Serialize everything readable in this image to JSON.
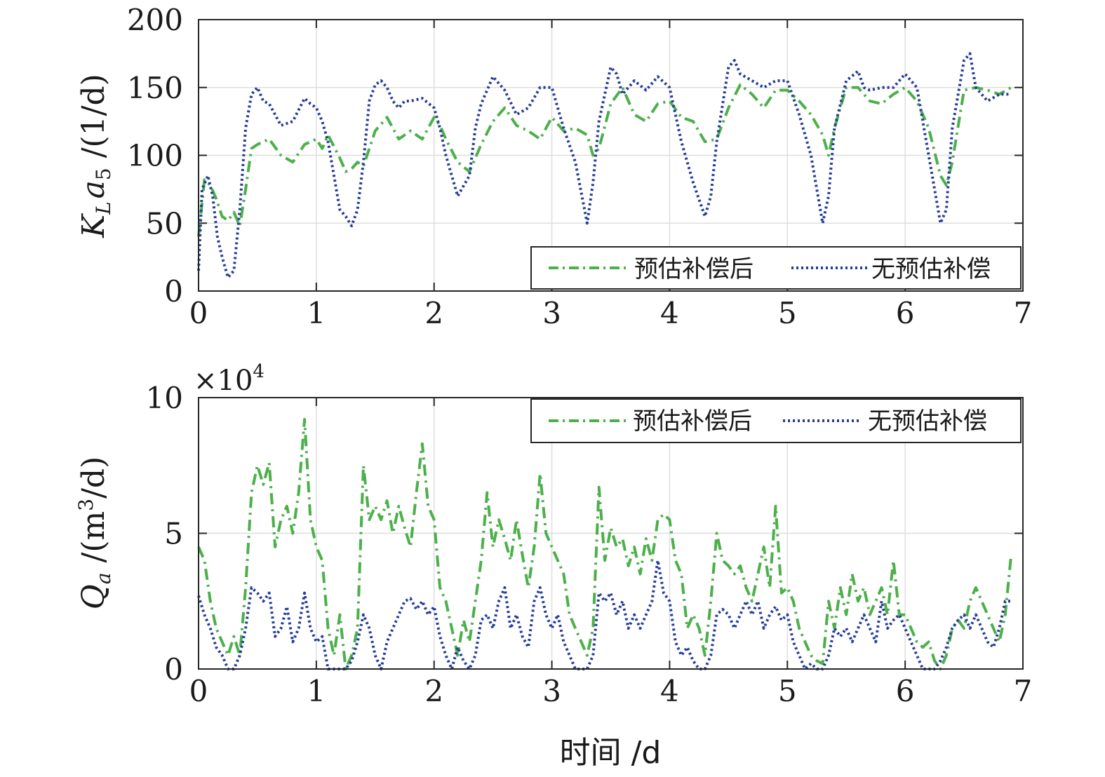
{
  "colors": {
    "green": "#4CB04A",
    "blue": "#253B9A",
    "grid": "#DEDEDE",
    "axis": "#262626"
  },
  "x_label": "时间 /d",
  "chart_data": [
    {
      "type": "line",
      "ylabel": {
        "main": "K",
        "sub1": "L",
        "mid": "a",
        "sub2": "5",
        "unit": " /(1/d)"
      },
      "xlim": [
        0,
        7
      ],
      "ylim": [
        0,
        200
      ],
      "xticks": [
        "0",
        "1",
        "2",
        "3",
        "4",
        "5",
        "6",
        "7"
      ],
      "yticks": [
        "0",
        "50",
        "100",
        "150",
        "200"
      ],
      "grid": true,
      "legend_position": "bottom-right",
      "series": [
        {
          "name": "预估补偿后",
          "color": "#4CB04A",
          "style": "dashdot",
          "x": [
            0,
            0.05,
            0.1,
            0.15,
            0.2,
            0.25,
            0.3,
            0.35,
            0.4,
            0.45,
            0.5,
            0.6,
            0.7,
            0.8,
            0.9,
            1.0,
            1.05,
            1.1,
            1.2,
            1.25,
            1.3,
            1.35,
            1.4,
            1.5,
            1.6,
            1.7,
            1.8,
            1.9,
            2.0,
            2.05,
            2.1,
            2.2,
            2.3,
            2.4,
            2.5,
            2.6,
            2.7,
            2.8,
            2.9,
            3.0,
            3.1,
            3.2,
            3.3,
            3.35,
            3.4,
            3.5,
            3.6,
            3.7,
            3.8,
            3.9,
            4.0,
            4.1,
            4.2,
            4.3,
            4.4,
            4.5,
            4.6,
            4.7,
            4.8,
            4.9,
            5.0,
            5.1,
            5.2,
            5.3,
            5.35,
            5.4,
            5.5,
            5.6,
            5.7,
            5.8,
            5.9,
            6.0,
            6.1,
            6.2,
            6.3,
            6.35,
            6.4,
            6.5,
            6.6,
            6.7,
            6.8,
            6.9
          ],
          "y": [
            40,
            82,
            78,
            68,
            55,
            52,
            58,
            48,
            75,
            105,
            108,
            112,
            100,
            95,
            108,
            112,
            105,
            115,
            98,
            88,
            90,
            95,
            92,
            118,
            128,
            112,
            118,
            112,
            128,
            122,
            112,
            95,
            88,
            108,
            125,
            135,
            122,
            118,
            112,
            128,
            118,
            120,
            115,
            100,
            105,
            138,
            150,
            130,
            125,
            138,
            140,
            128,
            125,
            110,
            112,
            135,
            152,
            145,
            135,
            148,
            148,
            140,
            130,
            115,
            100,
            120,
            150,
            150,
            140,
            138,
            145,
            150,
            140,
            120,
            85,
            78,
            95,
            148,
            150,
            148,
            145,
            150
          ]
        },
        {
          "name": "无预估补偿",
          "color": "#253B9A",
          "style": "dotted",
          "x": [
            0,
            0.03,
            0.08,
            0.12,
            0.16,
            0.2,
            0.25,
            0.3,
            0.35,
            0.4,
            0.45,
            0.5,
            0.55,
            0.6,
            0.7,
            0.8,
            0.9,
            0.95,
            1.0,
            1.05,
            1.1,
            1.2,
            1.25,
            1.3,
            1.35,
            1.4,
            1.45,
            1.5,
            1.55,
            1.6,
            1.65,
            1.7,
            1.75,
            1.8,
            1.9,
            2.0,
            2.05,
            2.1,
            2.2,
            2.3,
            2.35,
            2.4,
            2.5,
            2.6,
            2.7,
            2.8,
            2.9,
            3.0,
            3.1,
            3.2,
            3.3,
            3.35,
            3.4,
            3.5,
            3.55,
            3.6,
            3.7,
            3.8,
            3.9,
            4.0,
            4.1,
            4.2,
            4.3,
            4.35,
            4.4,
            4.5,
            4.55,
            4.6,
            4.7,
            4.8,
            4.9,
            5.0,
            5.1,
            5.2,
            5.3,
            5.35,
            5.4,
            5.5,
            5.6,
            5.65,
            5.7,
            5.8,
            5.9,
            6.0,
            6.1,
            6.2,
            6.3,
            6.35,
            6.4,
            6.5,
            6.55,
            6.6,
            6.7,
            6.8,
            6.9
          ],
          "y": [
            15,
            75,
            85,
            70,
            40,
            25,
            10,
            15,
            60,
            120,
            145,
            150,
            140,
            138,
            122,
            125,
            142,
            138,
            135,
            125,
            110,
            60,
            55,
            48,
            60,
            95,
            140,
            152,
            155,
            150,
            140,
            135,
            140,
            140,
            142,
            135,
            120,
            100,
            70,
            85,
            120,
            138,
            158,
            148,
            130,
            135,
            150,
            150,
            120,
            95,
            50,
            80,
            125,
            165,
            160,
            145,
            155,
            148,
            158,
            150,
            110,
            80,
            55,
            70,
            110,
            165,
            170,
            160,
            155,
            150,
            155,
            155,
            130,
            100,
            50,
            70,
            120,
            155,
            162,
            150,
            148,
            150,
            150,
            160,
            150,
            100,
            50,
            60,
            120,
            170,
            175,
            150,
            140,
            145,
            145
          ]
        }
      ]
    },
    {
      "type": "line",
      "ylabel": {
        "main": "Q",
        "sub1": "a",
        "unit1": " /(m",
        "sup": "3",
        "unit2": "/d)"
      },
      "multiplier": {
        "base": "×10",
        "exp": "4"
      },
      "xlim": [
        0,
        7
      ],
      "ylim": [
        0,
        10
      ],
      "xticks": [
        "0",
        "1",
        "2",
        "3",
        "4",
        "5",
        "6",
        "7"
      ],
      "yticks": [
        "0",
        "5",
        "10"
      ],
      "grid": true,
      "legend_position": "top-right",
      "series": [
        {
          "name": "预估补偿后",
          "color": "#4CB04A",
          "style": "dashdot",
          "x": [
            0,
            0.05,
            0.1,
            0.15,
            0.2,
            0.25,
            0.3,
            0.35,
            0.4,
            0.45,
            0.5,
            0.55,
            0.6,
            0.65,
            0.7,
            0.75,
            0.8,
            0.85,
            0.9,
            0.95,
            1.0,
            1.05,
            1.1,
            1.15,
            1.2,
            1.25,
            1.3,
            1.35,
            1.4,
            1.45,
            1.5,
            1.55,
            1.6,
            1.65,
            1.7,
            1.75,
            1.8,
            1.85,
            1.9,
            1.95,
            2.0,
            2.05,
            2.1,
            2.15,
            2.2,
            2.25,
            2.3,
            2.35,
            2.4,
            2.45,
            2.5,
            2.55,
            2.6,
            2.65,
            2.7,
            2.75,
            2.8,
            2.85,
            2.9,
            2.95,
            3.0,
            3.05,
            3.1,
            3.15,
            3.2,
            3.25,
            3.3,
            3.35,
            3.4,
            3.45,
            3.5,
            3.55,
            3.6,
            3.65,
            3.7,
            3.75,
            3.8,
            3.85,
            3.9,
            3.95,
            4.0,
            4.05,
            4.1,
            4.15,
            4.2,
            4.25,
            4.3,
            4.35,
            4.4,
            4.45,
            4.5,
            4.55,
            4.6,
            4.65,
            4.7,
            4.75,
            4.8,
            4.85,
            4.9,
            4.95,
            5.0,
            5.05,
            5.1,
            5.15,
            5.2,
            5.25,
            5.3,
            5.35,
            5.4,
            5.45,
            5.5,
            5.55,
            5.6,
            5.65,
            5.7,
            5.75,
            5.8,
            5.85,
            5.9,
            5.95,
            6.0,
            6.05,
            6.1,
            6.15,
            6.2,
            6.25,
            6.3,
            6.35,
            6.4,
            6.45,
            6.5,
            6.55,
            6.6,
            6.65,
            6.7,
            6.75,
            6.8,
            6.85,
            6.9
          ],
          "y": [
            4.5,
            4.0,
            2.5,
            1.5,
            1.0,
            0.5,
            1.2,
            0.5,
            3.0,
            6.5,
            7.5,
            6.8,
            7.6,
            4.5,
            5.5,
            6.0,
            5.0,
            6.5,
            9.2,
            5.5,
            4.5,
            4.0,
            1.5,
            0.5,
            2.0,
            0.0,
            0.5,
            1.5,
            7.5,
            5.5,
            6.0,
            5.5,
            6.2,
            5.0,
            6.0,
            5.2,
            4.5,
            6.5,
            8.3,
            6.0,
            5.5,
            3.0,
            2.5,
            1.5,
            0.5,
            1.8,
            1.0,
            2.5,
            4.0,
            6.5,
            4.5,
            5.5,
            4.8,
            4.0,
            5.5,
            4.2,
            3.0,
            4.5,
            7.2,
            5.0,
            4.5,
            4.0,
            3.5,
            2.0,
            1.5,
            1.0,
            0.5,
            1.5,
            6.7,
            4.0,
            5.2,
            4.5,
            4.8,
            3.8,
            4.5,
            3.5,
            4.8,
            4.0,
            5.5,
            5.7,
            5.5,
            4.0,
            3.5,
            1.5,
            2.0,
            1.5,
            0.5,
            2.5,
            5.0,
            4.0,
            3.8,
            3.5,
            3.8,
            3.0,
            2.5,
            3.5,
            4.5,
            3.0,
            6.0,
            2.8,
            3.0,
            2.5,
            1.5,
            1.0,
            0.5,
            0.3,
            0.2,
            2.5,
            1.5,
            3.0,
            2.0,
            3.5,
            2.5,
            3.0,
            2.0,
            2.5,
            3.0,
            2.0,
            4.0,
            2.0,
            2.0,
            1.5,
            1.0,
            0.8,
            1.0,
            0.3,
            0.0,
            0.5,
            1.5,
            1.8,
            1.5,
            2.5,
            3.0,
            2.5,
            2.0,
            1.5,
            1.0,
            2.0,
            4.2
          ]
        },
        {
          "name": "无预估补偿",
          "color": "#253B9A",
          "style": "dotted",
          "x": [
            0,
            0.05,
            0.1,
            0.15,
            0.2,
            0.25,
            0.3,
            0.35,
            0.4,
            0.45,
            0.5,
            0.55,
            0.6,
            0.65,
            0.7,
            0.75,
            0.8,
            0.85,
            0.9,
            0.95,
            1.0,
            1.05,
            1.1,
            1.15,
            1.2,
            1.25,
            1.3,
            1.35,
            1.4,
            1.45,
            1.5,
            1.55,
            1.6,
            1.65,
            1.7,
            1.75,
            1.8,
            1.85,
            1.9,
            1.95,
            2.0,
            2.05,
            2.1,
            2.15,
            2.2,
            2.25,
            2.3,
            2.35,
            2.4,
            2.45,
            2.5,
            2.55,
            2.6,
            2.65,
            2.7,
            2.75,
            2.8,
            2.85,
            2.9,
            2.95,
            3.0,
            3.05,
            3.1,
            3.15,
            3.2,
            3.25,
            3.3,
            3.35,
            3.4,
            3.45,
            3.5,
            3.55,
            3.6,
            3.65,
            3.7,
            3.75,
            3.8,
            3.85,
            3.9,
            3.95,
            4.0,
            4.05,
            4.1,
            4.15,
            4.2,
            4.25,
            4.3,
            4.35,
            4.4,
            4.45,
            4.5,
            4.55,
            4.6,
            4.65,
            4.7,
            4.75,
            4.8,
            4.85,
            4.9,
            4.95,
            5.0,
            5.05,
            5.1,
            5.15,
            5.2,
            5.25,
            5.3,
            5.35,
            5.4,
            5.45,
            5.5,
            5.55,
            5.6,
            5.65,
            5.7,
            5.75,
            5.8,
            5.85,
            5.9,
            5.95,
            6.0,
            6.05,
            6.1,
            6.15,
            6.2,
            6.25,
            6.3,
            6.35,
            6.4,
            6.45,
            6.5,
            6.55,
            6.6,
            6.65,
            6.7,
            6.75,
            6.8,
            6.85,
            6.9
          ],
          "y": [
            2.7,
            2.0,
            1.5,
            0.8,
            0.5,
            0.0,
            0.0,
            0.5,
            1.5,
            3.0,
            2.8,
            2.5,
            2.8,
            1.2,
            1.5,
            2.3,
            1.0,
            1.5,
            2.8,
            1.5,
            1.0,
            1.2,
            0.0,
            0.0,
            0.0,
            0.0,
            0.3,
            1.0,
            2.0,
            1.5,
            0.5,
            0.0,
            1.0,
            1.5,
            2.0,
            2.5,
            2.6,
            2.2,
            2.5,
            2.0,
            2.3,
            1.2,
            0.5,
            0.0,
            0.8,
            0.3,
            0.0,
            0.5,
            1.8,
            2.0,
            1.5,
            2.5,
            3.0,
            1.5,
            2.0,
            1.2,
            0.8,
            2.5,
            3.0,
            2.0,
            1.5,
            2.0,
            1.0,
            0.5,
            0.0,
            0.0,
            0.0,
            0.5,
            2.8,
            2.5,
            2.8,
            2.0,
            2.5,
            1.5,
            2.0,
            1.5,
            2.0,
            2.5,
            4.0,
            2.8,
            2.5,
            1.0,
            0.5,
            0.8,
            0.3,
            0.0,
            0.0,
            0.5,
            2.0,
            2.2,
            2.0,
            1.5,
            2.0,
            2.5,
            2.0,
            2.5,
            1.5,
            2.0,
            2.3,
            1.8,
            2.0,
            1.0,
            0.5,
            0.0,
            0.2,
            0.0,
            0.0,
            0.5,
            1.5,
            1.2,
            1.5,
            1.0,
            1.5,
            2.0,
            1.5,
            1.0,
            2.5,
            1.5,
            1.8,
            2.0,
            1.5,
            1.0,
            0.5,
            0.0,
            0.0,
            0.0,
            0.3,
            0.8,
            1.5,
            1.8,
            2.0,
            1.5,
            2.0,
            1.5,
            1.0,
            0.8,
            1.5,
            2.5,
            2.5
          ]
        }
      ]
    }
  ]
}
